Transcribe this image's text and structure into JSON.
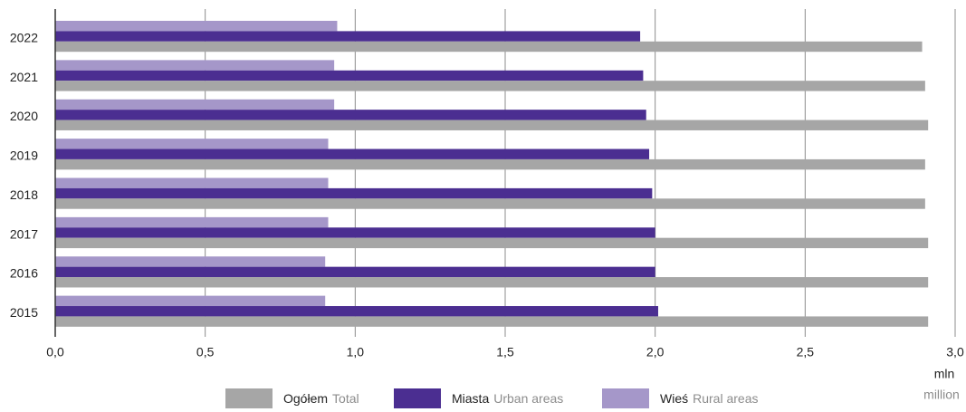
{
  "chart_data": {
    "type": "barh",
    "categories": [
      "2022",
      "2021",
      "2020",
      "2019",
      "2018",
      "2017",
      "2016",
      "2015"
    ],
    "series": [
      {
        "name": "Wieś",
        "name_en": "Rural areas",
        "color": "#a597c9",
        "values": [
          0.94,
          0.93,
          0.93,
          0.91,
          0.91,
          0.91,
          0.9,
          0.9
        ]
      },
      {
        "name": "Miasta",
        "name_en": "Urban areas",
        "color": "#4b2e91",
        "values": [
          1.95,
          1.96,
          1.97,
          1.98,
          1.99,
          2.0,
          2.0,
          2.01
        ]
      },
      {
        "name": "Ogółem",
        "name_en": "Total",
        "color": "#a6a6a6",
        "values": [
          2.89,
          2.9,
          2.91,
          2.9,
          2.9,
          2.91,
          2.91,
          2.91
        ]
      }
    ],
    "legend_order": [
      2,
      1,
      0
    ],
    "xlim": [
      0,
      3.0
    ],
    "xticks": [
      {
        "value": 0,
        "label": "0,0"
      },
      {
        "value": 0.5,
        "label": "0,5"
      },
      {
        "value": 1.0,
        "label": "1,0"
      },
      {
        "value": 1.5,
        "label": "1,5"
      },
      {
        "value": 2.0,
        "label": "2,0"
      },
      {
        "value": 2.5,
        "label": "2,5"
      },
      {
        "value": 3.0,
        "label": "3,0"
      }
    ],
    "xlabel": "mln",
    "xlabel_en": "million",
    "grid": true
  }
}
